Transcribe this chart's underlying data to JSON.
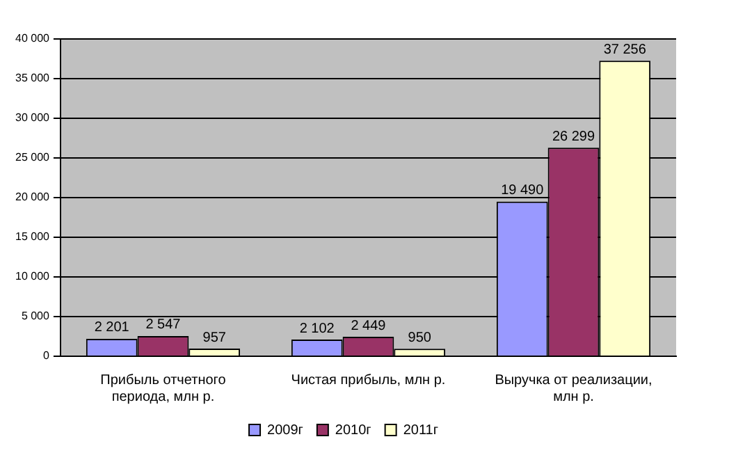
{
  "chart_data": {
    "type": "bar",
    "categories": [
      "Прибыль отчетного периода, млн р.",
      "Чистая прибыль, млн р.",
      "Выручка от реализации, млн р."
    ],
    "series": [
      {
        "name": "2009г",
        "color": "#9999ff",
        "values": [
          2201,
          2102,
          19490
        ]
      },
      {
        "name": "2010г",
        "color": "#993366",
        "values": [
          2547,
          2449,
          26299
        ]
      },
      {
        "name": "2011г",
        "color": "#ffffcc",
        "values": [
          957,
          950,
          37256
        ]
      }
    ],
    "ylim": [
      0,
      40000
    ],
    "yticks": [
      {
        "value": 0,
        "label": "0"
      },
      {
        "value": 5000,
        "label": "5 000"
      },
      {
        "value": 10000,
        "label": "10 000"
      },
      {
        "value": 15000,
        "label": "15 000"
      },
      {
        "value": 20000,
        "label": "20 000"
      },
      {
        "value": 25000,
        "label": "25 000"
      },
      {
        "value": 30000,
        "label": "30 000"
      },
      {
        "value": 35000,
        "label": "35 000"
      },
      {
        "value": 40000,
        "label": "40 000"
      }
    ],
    "grid": "y",
    "legend": "bottom",
    "data_labels": true
  }
}
